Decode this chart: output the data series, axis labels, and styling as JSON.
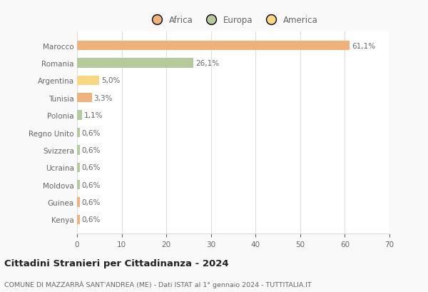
{
  "countries": [
    "Marocco",
    "Romania",
    "Argentina",
    "Tunisia",
    "Polonia",
    "Regno Unito",
    "Svizzera",
    "Ucraina",
    "Moldova",
    "Guinea",
    "Kenya"
  ],
  "values": [
    61.1,
    26.1,
    5.0,
    3.3,
    1.1,
    0.6,
    0.6,
    0.6,
    0.6,
    0.6,
    0.6
  ],
  "labels": [
    "61,1%",
    "26,1%",
    "5,0%",
    "3,3%",
    "1,1%",
    "0,6%",
    "0,6%",
    "0,6%",
    "0,6%",
    "0,6%",
    "0,6%"
  ],
  "colors": [
    "#f0b27a",
    "#b5c99a",
    "#f9d77e",
    "#f0b27a",
    "#b5c99a",
    "#b5c99a",
    "#b5c99a",
    "#b5c99a",
    "#b5c99a",
    "#f0b27a",
    "#f0b27a"
  ],
  "legend_labels": [
    "Africa",
    "Europa",
    "America"
  ],
  "legend_colors": [
    "#f0b27a",
    "#b5c99a",
    "#f9d77e"
  ],
  "title": "Cittadini Stranieri per Cittadinanza - 2024",
  "subtitle": "COMUNE DI MAZZARRÀ SANT'ANDREA (ME) - Dati ISTAT al 1° gennaio 2024 - TUTTITALIA.IT",
  "xlim": [
    0,
    70
  ],
  "xticks": [
    0,
    10,
    20,
    30,
    40,
    50,
    60,
    70
  ],
  "background_color": "#f9f9f9",
  "bar_background": "#ffffff",
  "grid_color": "#dddddd",
  "text_color": "#666666",
  "title_color": "#222222"
}
